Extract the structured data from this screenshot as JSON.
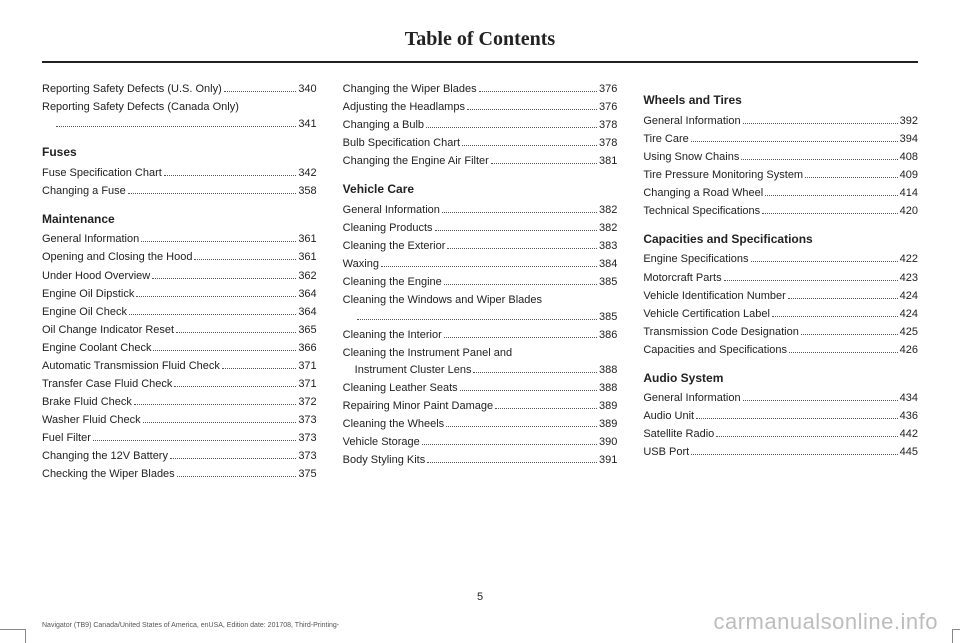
{
  "title": "Table of Contents",
  "pageNumber": "5",
  "footerLeft": "Navigator (TB9) Canada/United States of America, enUSA, Edition date: 201708, Third-Printing-",
  "watermark": "carmanualsonline.info",
  "columns": [
    [
      {
        "type": "entry",
        "label": "Reporting Safety Defects (U.S. Only)",
        "page": "340"
      },
      {
        "type": "entry-wrap",
        "line1": "Reporting Safety Defects (Canada Only)",
        "page": "341"
      },
      {
        "type": "heading",
        "label": "Fuses"
      },
      {
        "type": "entry",
        "label": "Fuse Specification Chart",
        "page": "342"
      },
      {
        "type": "entry",
        "label": "Changing a Fuse",
        "page": "358"
      },
      {
        "type": "heading",
        "label": "Maintenance"
      },
      {
        "type": "entry",
        "label": "General Information",
        "page": "361"
      },
      {
        "type": "entry",
        "label": "Opening and Closing the Hood",
        "page": "361"
      },
      {
        "type": "entry",
        "label": "Under Hood Overview",
        "page": "362"
      },
      {
        "type": "entry",
        "label": "Engine Oil Dipstick",
        "page": "364"
      },
      {
        "type": "entry",
        "label": "Engine Oil Check",
        "page": "364"
      },
      {
        "type": "entry",
        "label": "Oil Change Indicator Reset",
        "page": "365"
      },
      {
        "type": "entry",
        "label": "Engine Coolant Check",
        "page": "366"
      },
      {
        "type": "entry",
        "label": "Automatic Transmission Fluid Check",
        "page": "371"
      },
      {
        "type": "entry",
        "label": "Transfer Case Fluid Check",
        "page": "371"
      },
      {
        "type": "entry",
        "label": "Brake Fluid Check",
        "page": "372"
      },
      {
        "type": "entry",
        "label": "Washer Fluid Check",
        "page": "373"
      },
      {
        "type": "entry",
        "label": "Fuel Filter",
        "page": "373"
      },
      {
        "type": "entry",
        "label": "Changing the 12V Battery",
        "page": "373"
      },
      {
        "type": "entry",
        "label": "Checking the Wiper Blades",
        "page": "375"
      }
    ],
    [
      {
        "type": "entry",
        "label": "Changing the Wiper Blades",
        "page": "376"
      },
      {
        "type": "entry",
        "label": "Adjusting the Headlamps",
        "page": "376"
      },
      {
        "type": "entry",
        "label": "Changing a Bulb",
        "page": "378"
      },
      {
        "type": "entry",
        "label": "Bulb Specification Chart",
        "page": "378"
      },
      {
        "type": "entry",
        "label": "Changing the Engine Air Filter",
        "page": "381"
      },
      {
        "type": "heading",
        "label": "Vehicle Care"
      },
      {
        "type": "entry",
        "label": "General Information",
        "page": "382"
      },
      {
        "type": "entry",
        "label": "Cleaning Products",
        "page": "382"
      },
      {
        "type": "entry",
        "label": "Cleaning the Exterior",
        "page": "383"
      },
      {
        "type": "entry",
        "label": "Waxing",
        "page": "384"
      },
      {
        "type": "entry",
        "label": "Cleaning the Engine",
        "page": "385"
      },
      {
        "type": "entry-wrap",
        "line1": "Cleaning the Windows and Wiper Blades",
        "page": "385"
      },
      {
        "type": "entry",
        "label": "Cleaning the Interior",
        "page": "386"
      },
      {
        "type": "entry-wrap2",
        "line1": "Cleaning the Instrument Panel and",
        "line2": "Instrument Cluster Lens",
        "page": "388"
      },
      {
        "type": "entry",
        "label": "Cleaning Leather Seats",
        "page": "388"
      },
      {
        "type": "entry",
        "label": "Repairing Minor Paint Damage",
        "page": "389"
      },
      {
        "type": "entry",
        "label": "Cleaning the Wheels",
        "page": "389"
      },
      {
        "type": "entry",
        "label": "Vehicle Storage",
        "page": "390"
      },
      {
        "type": "entry",
        "label": "Body Styling Kits",
        "page": "391"
      }
    ],
    [
      {
        "type": "heading",
        "label": "Wheels and Tires"
      },
      {
        "type": "entry",
        "label": "General Information",
        "page": "392"
      },
      {
        "type": "entry",
        "label": "Tire Care",
        "page": "394"
      },
      {
        "type": "entry",
        "label": "Using Snow Chains",
        "page": "408"
      },
      {
        "type": "entry",
        "label": "Tire Pressure Monitoring System",
        "page": "409"
      },
      {
        "type": "entry",
        "label": "Changing a Road Wheel",
        "page": "414"
      },
      {
        "type": "entry",
        "label": "Technical Specifications",
        "page": "420"
      },
      {
        "type": "heading",
        "label": "Capacities and Specifications"
      },
      {
        "type": "entry",
        "label": "Engine Specifications",
        "page": "422"
      },
      {
        "type": "entry",
        "label": "Motorcraft Parts",
        "page": "423"
      },
      {
        "type": "entry",
        "label": "Vehicle Identification Number",
        "page": "424"
      },
      {
        "type": "entry",
        "label": "Vehicle Certification Label",
        "page": "424"
      },
      {
        "type": "entry",
        "label": "Transmission Code Designation",
        "page": "425"
      },
      {
        "type": "entry",
        "label": "Capacities and Specifications",
        "page": "426"
      },
      {
        "type": "heading",
        "label": "Audio System"
      },
      {
        "type": "entry",
        "label": "General Information",
        "page": "434"
      },
      {
        "type": "entry",
        "label": "Audio Unit",
        "page": "436"
      },
      {
        "type": "entry",
        "label": "Satellite Radio",
        "page": "442"
      },
      {
        "type": "entry",
        "label": "USB Port",
        "page": "445"
      }
    ]
  ]
}
